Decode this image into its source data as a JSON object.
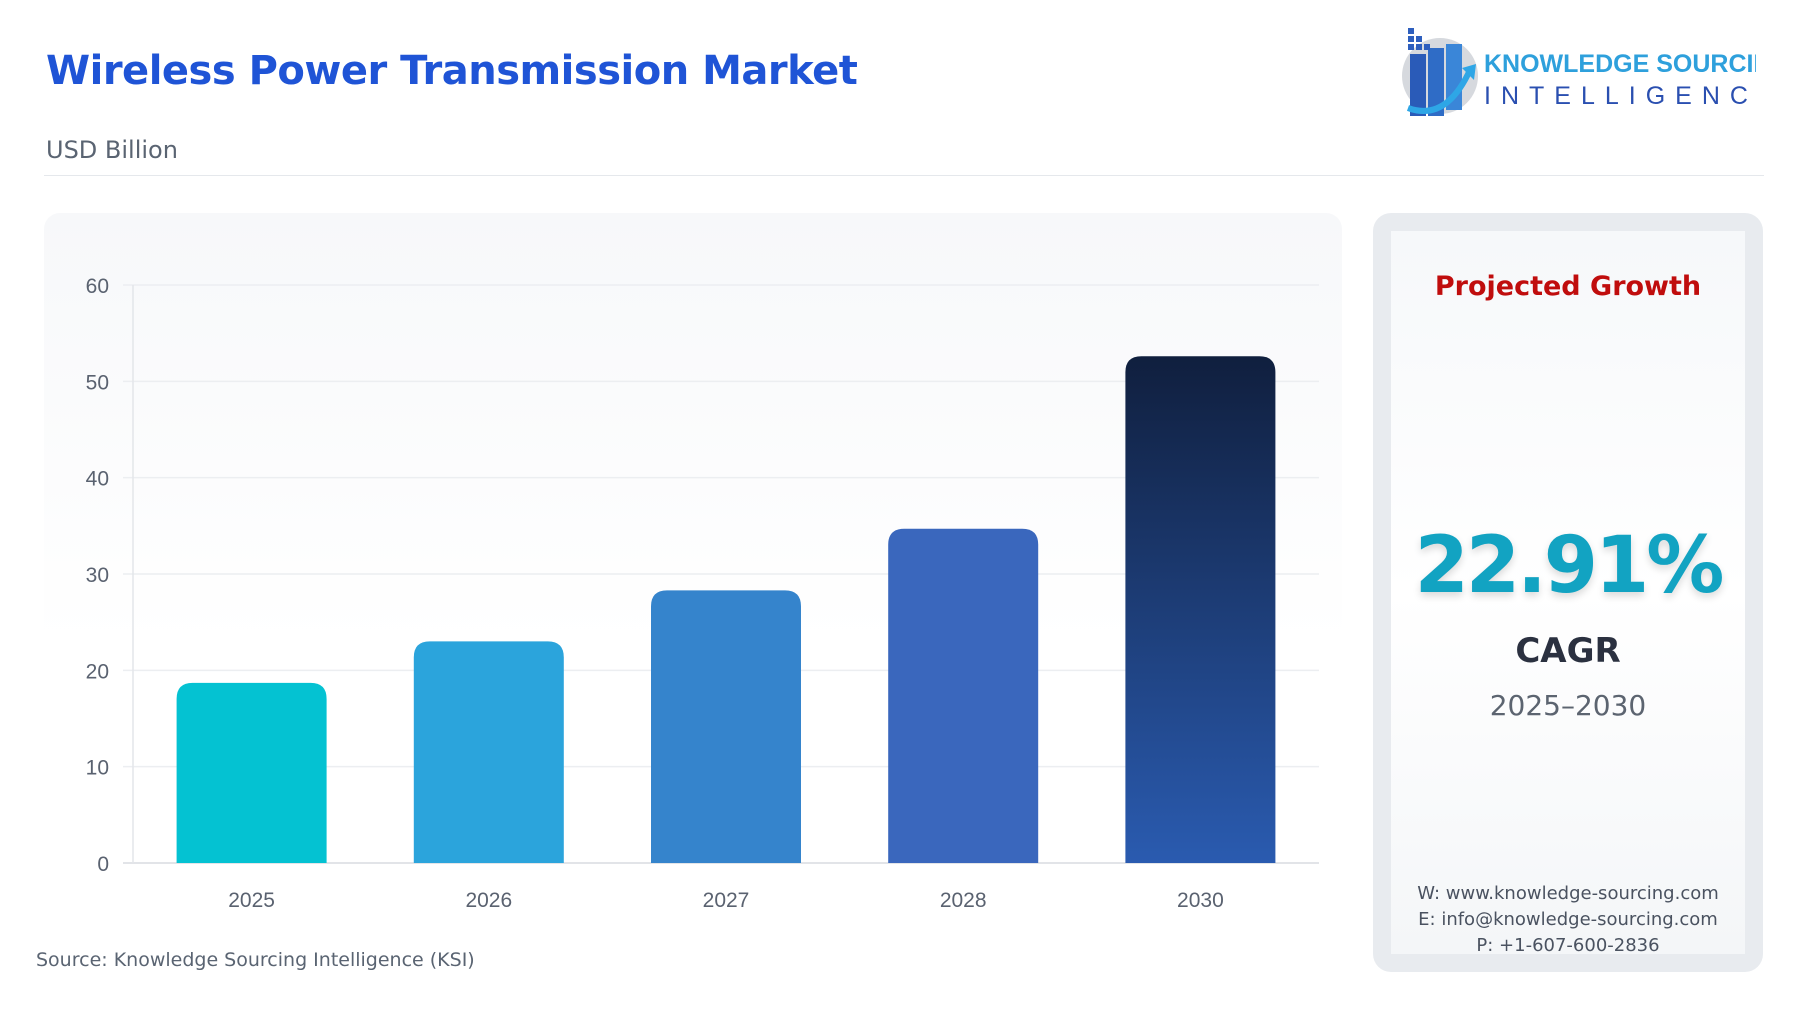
{
  "header": {
    "title": "Wireless Power Transmission Market",
    "subtitle": "USD Billion"
  },
  "logo": {
    "line1": "KNOWLEDGE SOURCING",
    "line2": "INTELLIGENCE"
  },
  "chart_data": {
    "type": "bar",
    "categories": [
      "2025",
      "2026",
      "2027",
      "2028",
      "2030"
    ],
    "values": [
      18.7,
      23.0,
      28.3,
      34.7,
      52.6
    ],
    "ylim": [
      0,
      60
    ],
    "yticks": [
      0,
      10,
      20,
      30,
      40,
      50,
      60
    ],
    "grid": true,
    "colors": [
      "#04c2d2",
      "#2ba4dc",
      "#3584cc",
      "#3a67bd",
      "#1c2d52"
    ]
  },
  "panel": {
    "heading": "Projected Growth",
    "cagr_value": "22.91%",
    "cagr_label": "CAGR",
    "period": "2025–2030",
    "website": "W: www.knowledge-sourcing.com",
    "email": "E: info@knowledge-sourcing.com",
    "phone": "P: +1-607-600-2836"
  },
  "footer": {
    "source": "Source: Knowledge Sourcing Intelligence (KSI)"
  }
}
